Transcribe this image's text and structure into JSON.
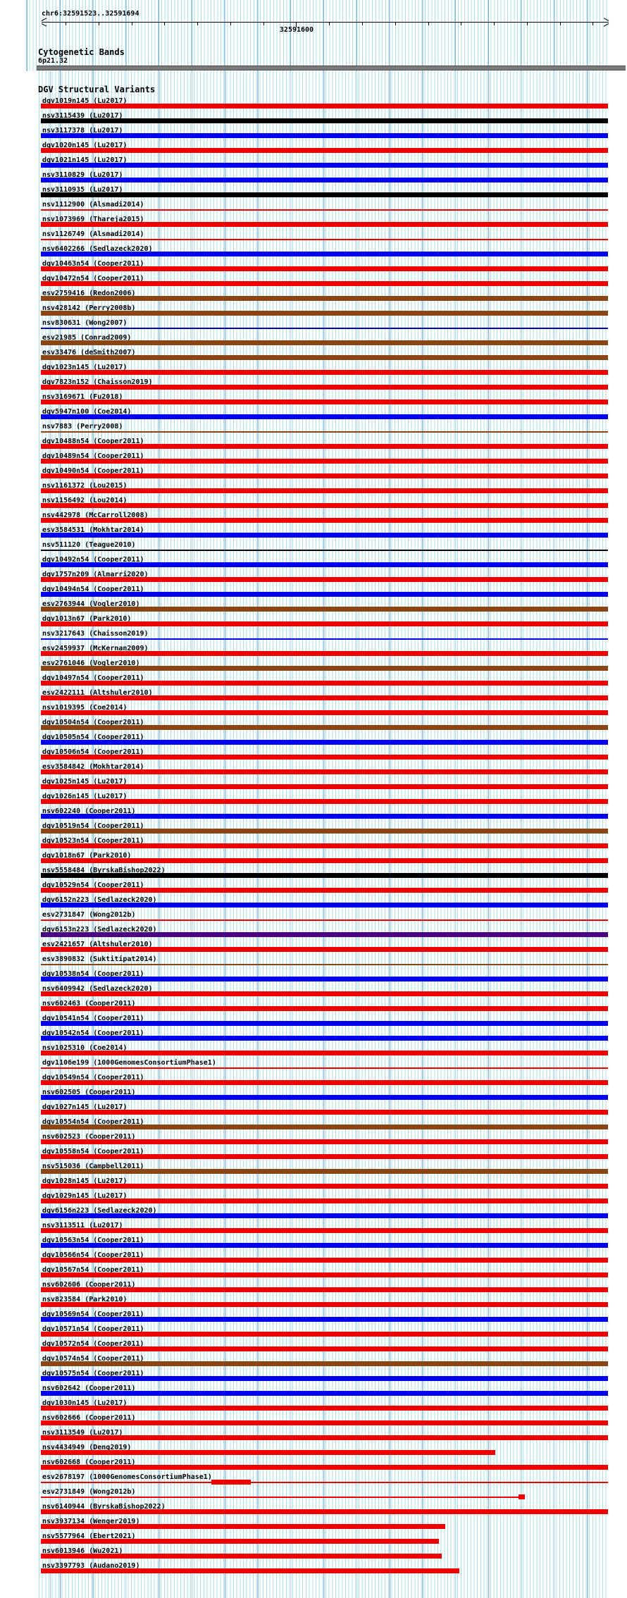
{
  "header": {
    "region": "chr6:32591523..32591694",
    "ruler": {
      "start": 32591523,
      "end": 32591694,
      "major_tick_label": "32591600",
      "tick_interval_bases": 10
    }
  },
  "cytobands": {
    "title": "Cytogenetic Bands",
    "band": "6p21.32"
  },
  "track": {
    "title": "DGV Structural Variants",
    "variants": [
      {
        "label": "dgv1019n145 (Lu2017)",
        "color": "red",
        "glyph": "bar"
      },
      {
        "label": "nsv3115439 (Lu2017)",
        "color": "black",
        "glyph": "bar"
      },
      {
        "label": "nsv3117378 (Lu2017)",
        "color": "blue",
        "glyph": "bar"
      },
      {
        "label": "dgv1020n145 (Lu2017)",
        "color": "red",
        "glyph": "bar"
      },
      {
        "label": "dgv1021n145 (Lu2017)",
        "color": "blue",
        "glyph": "bar"
      },
      {
        "label": "nsv3110829 (Lu2017)",
        "color": "blue",
        "glyph": "bar"
      },
      {
        "label": "nsv3110935 (Lu2017)",
        "color": "black",
        "glyph": "bar"
      },
      {
        "label": "nsv1112900 (Alsmadi2014)",
        "color": "red",
        "glyph": "line"
      },
      {
        "label": "nsv1073969 (Thareja2015)",
        "color": "red",
        "glyph": "bar"
      },
      {
        "label": "nsv1126749 (Alsmadi2014)",
        "color": "red",
        "glyph": "line"
      },
      {
        "label": "nsv6402266 (Sedlazeck2020)",
        "color": "blue",
        "glyph": "bar"
      },
      {
        "label": "dgv10463n54 (Cooper2011)",
        "color": "red",
        "glyph": "bar"
      },
      {
        "label": "dgv10472n54 (Cooper2011)",
        "color": "red",
        "glyph": "bar"
      },
      {
        "label": "esv2759416 (Redon2006)",
        "color": "brown",
        "glyph": "bar"
      },
      {
        "label": "nsv428142 (Perry2008b)",
        "color": "brown",
        "glyph": "bar"
      },
      {
        "label": "nsv830631 (Wong2007)",
        "color": "navy",
        "glyph": "line"
      },
      {
        "label": "esv21985 (Conrad2009)",
        "color": "brown",
        "glyph": "bar"
      },
      {
        "label": "esv33476 (deSmith2007)",
        "color": "brown",
        "glyph": "bar"
      },
      {
        "label": "dgv1023n145 (Lu2017)",
        "color": "red",
        "glyph": "bar"
      },
      {
        "label": "dgv7823n152 (Chaisson2019)",
        "color": "red",
        "glyph": "bar"
      },
      {
        "label": "nsv3169671 (Fu2018)",
        "color": "red",
        "glyph": "bar"
      },
      {
        "label": "dgv5947n100 (Coe2014)",
        "color": "blue",
        "glyph": "bar"
      },
      {
        "label": "nsv7883 (Perry2008)",
        "color": "brown",
        "glyph": "line"
      },
      {
        "label": "dgv10488n54 (Cooper2011)",
        "color": "red",
        "glyph": "bar"
      },
      {
        "label": "dgv10489n54 (Cooper2011)",
        "color": "red",
        "glyph": "bar"
      },
      {
        "label": "dgv10490n54 (Cooper2011)",
        "color": "red",
        "glyph": "bar"
      },
      {
        "label": "nsv1161372 (Lou2015)",
        "color": "red",
        "glyph": "bar"
      },
      {
        "label": "nsv1156492 (Lou2014)",
        "color": "red",
        "glyph": "bar"
      },
      {
        "label": "nsv442978 (McCarroll2008)",
        "color": "red",
        "glyph": "bar"
      },
      {
        "label": "esv3584531 (Mokhtar2014)",
        "color": "blue",
        "glyph": "bar"
      },
      {
        "label": "nsv511120 (Teague2010)",
        "color": "black",
        "glyph": "line"
      },
      {
        "label": "dgv10492n54 (Cooper2011)",
        "color": "blue",
        "glyph": "bar"
      },
      {
        "label": "dgv1757n209 (Almarri2020)",
        "color": "red",
        "glyph": "bar"
      },
      {
        "label": "dgv10494n54 (Cooper2011)",
        "color": "blue",
        "glyph": "bar"
      },
      {
        "label": "esv2763944 (Vogler2010)",
        "color": "brown",
        "glyph": "bar"
      },
      {
        "label": "dgv1013n67 (Park2010)",
        "color": "red",
        "glyph": "bar"
      },
      {
        "label": "nsv3217643 (Chaisson2019)",
        "color": "blue",
        "glyph": "line"
      },
      {
        "label": "esv2459937 (McKernan2009)",
        "color": "red",
        "glyph": "bar"
      },
      {
        "label": "esv2761046 (Vogler2010)",
        "color": "brown",
        "glyph": "bar"
      },
      {
        "label": "dgv10497n54 (Cooper2011)",
        "color": "red",
        "glyph": "bar"
      },
      {
        "label": "esv2422111 (Altshuler2010)",
        "color": "red",
        "glyph": "bar"
      },
      {
        "label": "nsv1019395 (Coe2014)",
        "color": "red",
        "glyph": "bar"
      },
      {
        "label": "dgv10504n54 (Cooper2011)",
        "color": "brown",
        "glyph": "bar"
      },
      {
        "label": "dgv10505n54 (Cooper2011)",
        "color": "blue",
        "glyph": "bar"
      },
      {
        "label": "dgv10506n54 (Cooper2011)",
        "color": "red",
        "glyph": "bar"
      },
      {
        "label": "esv3584842 (Mokhtar2014)",
        "color": "red",
        "glyph": "bar"
      },
      {
        "label": "dgv1025n145 (Lu2017)",
        "color": "red",
        "glyph": "bar"
      },
      {
        "label": "dgv1026n145 (Lu2017)",
        "color": "red",
        "glyph": "bar"
      },
      {
        "label": "nsv602240 (Cooper2011)",
        "color": "blue",
        "glyph": "bar"
      },
      {
        "label": "dgv10519n54 (Cooper2011)",
        "color": "brown",
        "glyph": "bar"
      },
      {
        "label": "dgv10523n54 (Cooper2011)",
        "color": "red",
        "glyph": "bar"
      },
      {
        "label": "dgv1018n67 (Park2010)",
        "color": "red",
        "glyph": "bar"
      },
      {
        "label": "nsv5558484 (ByrskaBishop2022)",
        "color": "black",
        "glyph": "bar"
      },
      {
        "label": "dgv10529n54 (Cooper2011)",
        "color": "red",
        "glyph": "bar"
      },
      {
        "label": "dgv6152n223 (Sedlazeck2020)",
        "color": "blue",
        "glyph": "bar"
      },
      {
        "label": "esv2731847 (Wong2012b)",
        "color": "red",
        "glyph": "line"
      },
      {
        "label": "dgv6153n223 (Sedlazeck2020)",
        "color": "purple",
        "glyph": "bar"
      },
      {
        "label": "esv2421657 (Altshuler2010)",
        "color": "red",
        "glyph": "bar"
      },
      {
        "label": "esv3890832 (Suktitipat2014)",
        "color": "brown",
        "glyph": "line"
      },
      {
        "label": "dgv10538n54 (Cooper2011)",
        "color": "blue",
        "glyph": "bar"
      },
      {
        "label": "nsv6409942 (Sedlazeck2020)",
        "color": "red",
        "glyph": "bar"
      },
      {
        "label": "nsv602463 (Cooper2011)",
        "color": "red",
        "glyph": "bar"
      },
      {
        "label": "dgv10541n54 (Cooper2011)",
        "color": "blue",
        "glyph": "bar"
      },
      {
        "label": "dgv10542n54 (Cooper2011)",
        "color": "blue",
        "glyph": "bar"
      },
      {
        "label": "nsv1025310 (Coe2014)",
        "color": "red",
        "glyph": "bar"
      },
      {
        "label": "dgv1106e199 (1000GenomesConsortiumPhase1)",
        "color": "red",
        "glyph": "line"
      },
      {
        "label": "dgv10549n54 (Cooper2011)",
        "color": "red",
        "glyph": "bar"
      },
      {
        "label": "nsv602505 (Cooper2011)",
        "color": "blue",
        "glyph": "bar"
      },
      {
        "label": "dgv1027n145 (Lu2017)",
        "color": "red",
        "glyph": "bar"
      },
      {
        "label": "dgv10554n54 (Cooper2011)",
        "color": "brown",
        "glyph": "bar"
      },
      {
        "label": "nsv602523 (Cooper2011)",
        "color": "red",
        "glyph": "bar"
      },
      {
        "label": "dgv10558n54 (Cooper2011)",
        "color": "red",
        "glyph": "bar"
      },
      {
        "label": "nsv515036 (Campbell2011)",
        "color": "brown",
        "glyph": "bar"
      },
      {
        "label": "dgv1028n145 (Lu2017)",
        "color": "red",
        "glyph": "bar"
      },
      {
        "label": "dgv1029n145 (Lu2017)",
        "color": "red",
        "glyph": "bar"
      },
      {
        "label": "dgv6156n223 (Sedlazeck2020)",
        "color": "blue",
        "glyph": "bar"
      },
      {
        "label": "nsv3113511 (Lu2017)",
        "color": "red",
        "glyph": "bar"
      },
      {
        "label": "dgv10563n54 (Cooper2011)",
        "color": "blue",
        "glyph": "bar"
      },
      {
        "label": "dgv10566n54 (Cooper2011)",
        "color": "red",
        "glyph": "bar"
      },
      {
        "label": "dgv10567n54 (Cooper2011)",
        "color": "red",
        "glyph": "bar"
      },
      {
        "label": "nsv602606 (Cooper2011)",
        "color": "red",
        "glyph": "bar"
      },
      {
        "label": "nsv823584 (Park2010)",
        "color": "red",
        "glyph": "bar"
      },
      {
        "label": "dgv10569n54 (Cooper2011)",
        "color": "blue",
        "glyph": "bar"
      },
      {
        "label": "dgv10571n54 (Cooper2011)",
        "color": "red",
        "glyph": "bar"
      },
      {
        "label": "dgv10572n54 (Cooper2011)",
        "color": "red",
        "glyph": "bar"
      },
      {
        "label": "dgv10574n54 (Cooper2011)",
        "color": "brown",
        "glyph": "bar"
      },
      {
        "label": "dgv10575n54 (Cooper2011)",
        "color": "blue",
        "glyph": "bar"
      },
      {
        "label": "nsv602642 (Cooper2011)",
        "color": "blue",
        "glyph": "bar"
      },
      {
        "label": "dgv1030n145 (Lu2017)",
        "color": "red",
        "glyph": "bar"
      },
      {
        "label": "nsv602666 (Cooper2011)",
        "color": "red",
        "glyph": "bar"
      },
      {
        "label": "nsv3113549 (Lu2017)",
        "color": "red",
        "glyph": "bar"
      },
      {
        "label": "nsv4434949 (Deng2019)",
        "color": "red",
        "glyph": "bar",
        "end": 703
      },
      {
        "label": "nsv602668 (Cooper2011)",
        "color": "red",
        "glyph": "bar"
      },
      {
        "label": "esv2678197 (1000GenomesConsortiumPhase1)",
        "color": "red",
        "glyph": "line",
        "segment": [
          300,
          356
        ]
      },
      {
        "label": "esv2731849 (Wong2012b)",
        "color": "red",
        "glyph": "line",
        "end": 745,
        "segment": [
          736,
          745
        ]
      },
      {
        "label": "nsv6140944 (ByrskaBishop2022)",
        "color": "red",
        "glyph": "bar"
      },
      {
        "label": "nsv3937134 (Wenger2019)",
        "color": "red",
        "glyph": "bar",
        "end": 632
      },
      {
        "label": "nsv5577964 (Ebert2021)",
        "color": "red",
        "glyph": "bar",
        "end": 623
      },
      {
        "label": "nsv6013946 (Wu2021)",
        "color": "red",
        "glyph": "bar",
        "end": 627
      },
      {
        "label": "nsv3397793 (Audano2019)",
        "color": "red",
        "glyph": "bar",
        "end": 652
      }
    ]
  },
  "colors": {
    "red": "#ee0000",
    "blue": "#0000ee",
    "navy": "#0000b0",
    "brown": "#8b4513",
    "black": "#000000",
    "purple": "#4b0082",
    "band_gray": "#7b7b7b",
    "grid_cyan": "#aee0e9",
    "grid_blue": "#7fb0dc"
  }
}
